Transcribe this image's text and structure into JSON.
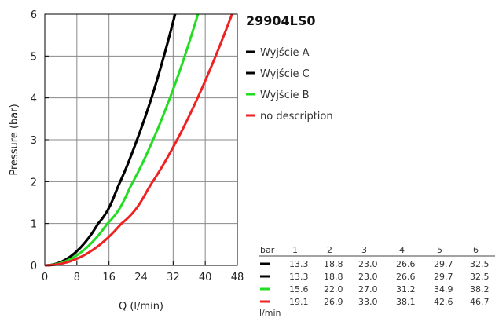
{
  "chart_data": {
    "type": "line",
    "title": "29904LS0",
    "xlabel": "Q (l/min)",
    "ylabel": "Pressure (bar)",
    "xlim": [
      0,
      48
    ],
    "ylim": [
      0,
      6
    ],
    "xticks": [
      0,
      8,
      16,
      24,
      32,
      40,
      48
    ],
    "yticks": [
      0,
      1,
      2,
      3,
      4,
      5,
      6
    ],
    "grid": true,
    "legend_position": "right",
    "series": [
      {
        "name": "Wyjście A",
        "color": "#000000",
        "x": [
          0,
          13.3,
          18.8,
          23.0,
          26.6,
          29.7,
          32.5
        ],
        "y": [
          0,
          1,
          2,
          3,
          4,
          5,
          6
        ]
      },
      {
        "name": "Wyjście C",
        "color": "#000000",
        "x": [
          0,
          13.3,
          18.8,
          23.0,
          26.6,
          29.7,
          32.5
        ],
        "y": [
          0,
          1,
          2,
          3,
          4,
          5,
          6
        ]
      },
      {
        "name": "Wyjście B",
        "color": "#22dd22",
        "x": [
          0,
          15.6,
          22.0,
          27.0,
          31.2,
          34.9,
          38.2
        ],
        "y": [
          0,
          1,
          2,
          3,
          4,
          5,
          6
        ]
      },
      {
        "name": "no description",
        "color": "#ee2222",
        "x": [
          0,
          19.1,
          26.9,
          33.0,
          38.1,
          42.6,
          46.7
        ],
        "y": [
          0,
          1,
          2,
          3,
          4,
          5,
          6
        ]
      }
    ],
    "table": {
      "header_label": "bar",
      "unit_label": "l/min",
      "columns": [
        "1",
        "2",
        "3",
        "4",
        "5",
        "6"
      ],
      "rows": [
        {
          "color": "#000000",
          "values": [
            "13.3",
            "18.8",
            "23.0",
            "26.6",
            "29.7",
            "32.5"
          ]
        },
        {
          "color": "#000000",
          "values": [
            "13.3",
            "18.8",
            "23.0",
            "26.6",
            "29.7",
            "32.5"
          ]
        },
        {
          "color": "#22dd22",
          "values": [
            "15.6",
            "22.0",
            "27.0",
            "31.2",
            "34.9",
            "38.2"
          ]
        },
        {
          "color": "#ee2222",
          "values": [
            "19.1",
            "26.9",
            "33.0",
            "38.1",
            "42.6",
            "46.7"
          ]
        }
      ]
    }
  }
}
